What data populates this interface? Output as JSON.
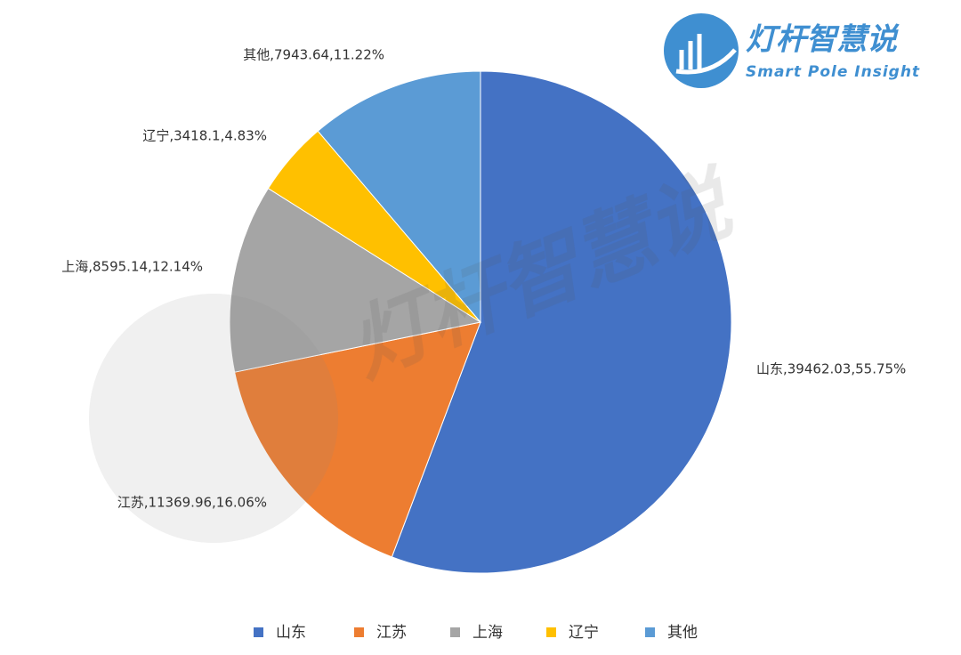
{
  "chart_data": {
    "type": "pie",
    "categories": [
      "山东",
      "江苏",
      "上海",
      "辽宁",
      "其他"
    ],
    "values": [
      39462.03,
      11369.96,
      8595.14,
      3418.1,
      7943.64
    ],
    "value_labels": [
      "山东,39462.03,55.75%",
      "江苏,11369.96,16.06%",
      "上海,8595.14,12.14%",
      "辽宁,3418.1,4.83%",
      "其他,7943.64,11.22%"
    ],
    "colors": [
      "#4472c4",
      "#ed7d31",
      "#a5a5a5",
      "#ffc000",
      "#5b9bd5"
    ],
    "legend": "bottom"
  },
  "logo": {
    "title": "灯杆智慧说",
    "subtitle": "Smart Pole Insight"
  }
}
